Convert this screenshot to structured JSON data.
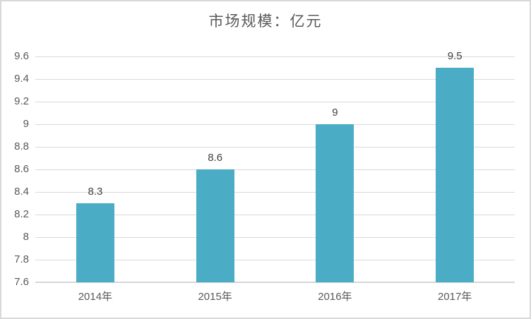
{
  "window": {
    "background": "#ffffff",
    "border_color": "#d9d9d9"
  },
  "chart_data": {
    "type": "bar",
    "title": "市场规模：亿元",
    "categories": [
      "2014年",
      "2015年",
      "2016年",
      "2017年"
    ],
    "values": [
      8.3,
      8.6,
      9,
      9.5
    ],
    "data_labels": [
      "8.3",
      "8.6",
      "9",
      "9.5"
    ],
    "xlabel": "",
    "ylabel": "",
    "ylim": [
      7.6,
      9.6
    ],
    "y_ticks": [
      7.6,
      7.8,
      8,
      8.2,
      8.4,
      8.6,
      8.8,
      9,
      9.2,
      9.4,
      9.6
    ],
    "y_tick_labels": [
      "7.6",
      "7.8",
      "8",
      "8.2",
      "8.4",
      "8.6",
      "8.8",
      "9",
      "9.2",
      "9.4",
      "9.6"
    ],
    "grid": true,
    "legend_position": "none",
    "bar_color": "#4bacc6",
    "gridline_color": "#d9d9d9",
    "axis_line_color": "#d6d6d6",
    "title_color": "#595959",
    "tick_label_color": "#595959",
    "data_label_color": "#404040"
  }
}
